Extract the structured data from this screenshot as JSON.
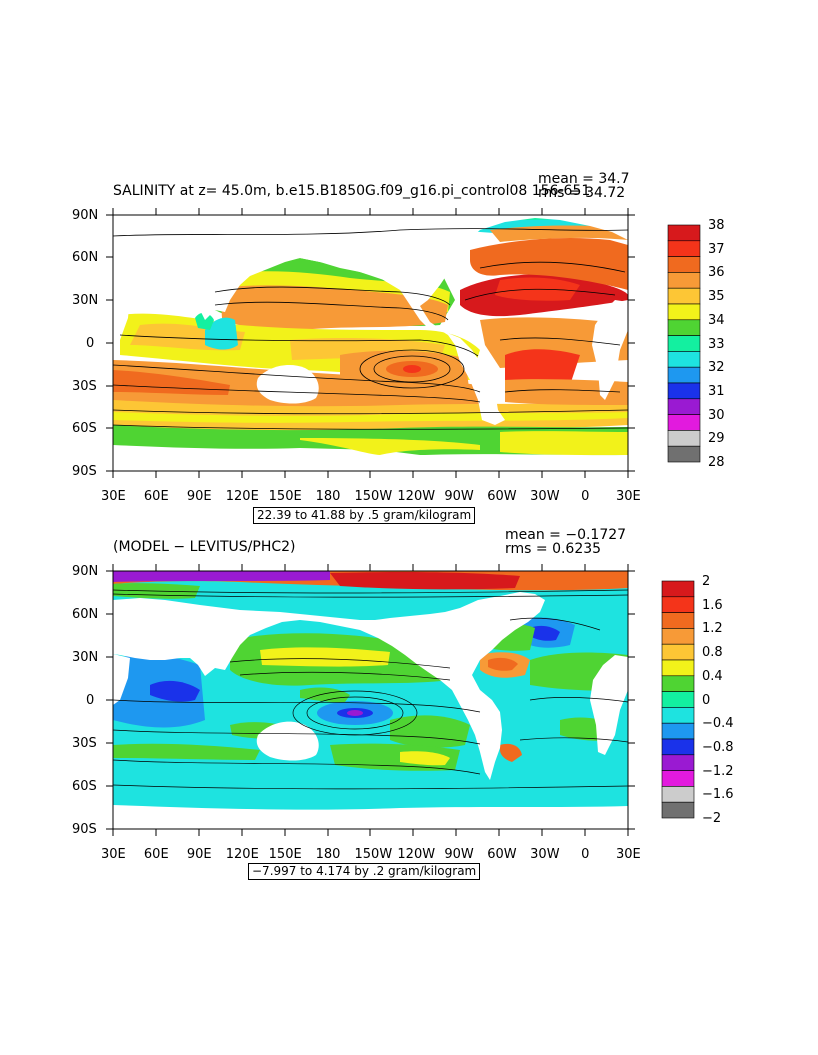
{
  "panels": [
    {
      "title": "SALINITY at z=  45.0m, b.e15.B1850G.f09_g16.pi_control08 156-651",
      "mean_text": "mean = 34.7",
      "rms_text": "rms = 34.72",
      "range_text": "22.39 to 41.88 by .5 gram/kilogram",
      "colorbar_labels": [
        "38",
        "37",
        "36",
        "35",
        "34",
        "33",
        "32",
        "31",
        "30",
        "29",
        "28"
      ],
      "colorbar_colors": [
        "#d7191c",
        "#f4341a",
        "#f06a1f",
        "#f79a37",
        "#fdc635",
        "#f2f21a",
        "#4fd433",
        "#13f0a0",
        "#1ee3e0",
        "#1e98f0",
        "#1a32ea",
        "#9a1ad2",
        "#e21ade",
        "#cccccc",
        "#707070"
      ]
    },
    {
      "title": "(MODEL − LEVITUS/PHC2)",
      "mean_text": "mean = −0.1727",
      "rms_text": "rms = 0.6235",
      "range_text": "−7.997 to 4.174 by .2 gram/kilogram",
      "colorbar_labels": [
        "2",
        "1.6",
        "1.2",
        "0.8",
        "0.4",
        "0",
        "−0.4",
        "−0.8",
        "−1.2",
        "−1.6",
        "−2"
      ],
      "colorbar_colors": [
        "#d7191c",
        "#f4341a",
        "#f06a1f",
        "#f79a37",
        "#fdc635",
        "#f2f21a",
        "#4fd433",
        "#13f0a0",
        "#1ee3e0",
        "#1e98f0",
        "#1a32ea",
        "#9a1ad2",
        "#e21ade",
        "#cccccc",
        "#707070"
      ]
    }
  ],
  "lat_labels": [
    "90N",
    "60N",
    "30N",
    "0",
    "30S",
    "60S",
    "90S"
  ],
  "lon_labels": [
    "30E",
    "60E",
    "90E",
    "120E",
    "150E",
    "180",
    "150W",
    "120W",
    "90W",
    "60W",
    "30W",
    "0",
    "30E"
  ]
}
